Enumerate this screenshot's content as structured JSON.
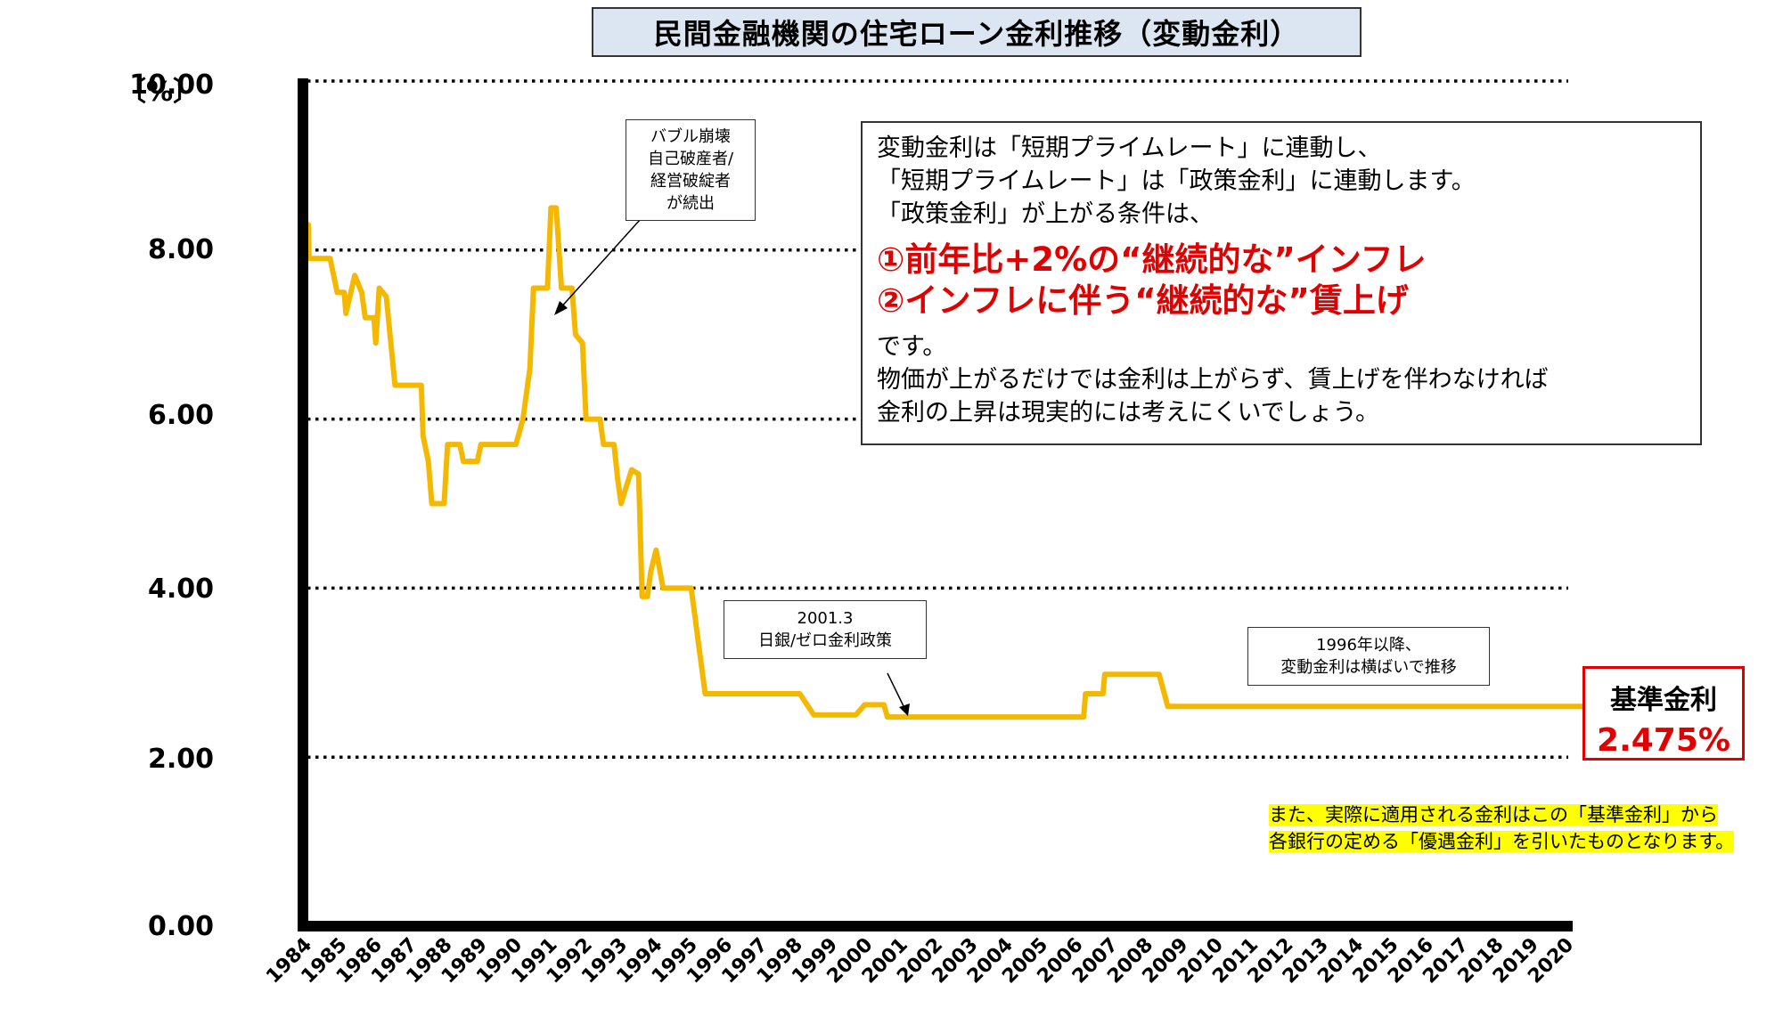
{
  "chart_data": {
    "type": "line",
    "title": "民間金融機関の住宅ローン金利推移（変動金利）",
    "ylabel_unit": "〔%〕",
    "ylim": [
      0,
      10
    ],
    "yticks": [
      "0.00",
      "2.00",
      "4.00",
      "6.00",
      "8.00",
      "10.00"
    ],
    "grid": "dotted horizontal at 2, 4, 6, 8, 10",
    "line_color": "#f5b800",
    "x_labels": [
      "1984",
      "1985",
      "1986",
      "1987",
      "1988",
      "1989",
      "1990",
      "1991",
      "1992",
      "1993",
      "1994",
      "1995",
      "1996",
      "1997",
      "1998",
      "1999",
      "2000",
      "2001",
      "2002",
      "2003",
      "2004",
      "2005",
      "2006",
      "2007",
      "2008",
      "2009",
      "2010",
      "2011",
      "2012",
      "2013",
      "2014",
      "2015",
      "2016",
      "2017",
      "2018",
      "2019",
      "2020"
    ],
    "series": [
      {
        "points": [
          [
            1984.0,
            8.1
          ],
          [
            1984.08,
            8.3
          ],
          [
            1984.1,
            7.9
          ],
          [
            1984.7,
            7.9
          ],
          [
            1984.9,
            7.5
          ],
          [
            1985.1,
            7.5
          ],
          [
            1985.15,
            7.25
          ],
          [
            1985.4,
            7.7
          ],
          [
            1985.6,
            7.5
          ],
          [
            1985.7,
            7.2
          ],
          [
            1985.95,
            7.2
          ],
          [
            1986.0,
            6.9
          ],
          [
            1986.1,
            7.55
          ],
          [
            1986.3,
            7.45
          ],
          [
            1986.55,
            6.4
          ],
          [
            1987.1,
            6.4
          ],
          [
            1987.3,
            6.4
          ],
          [
            1987.35,
            5.8
          ],
          [
            1987.5,
            5.5
          ],
          [
            1987.6,
            5.0
          ],
          [
            1987.95,
            5.0
          ],
          [
            1988.05,
            5.7
          ],
          [
            1988.4,
            5.7
          ],
          [
            1988.5,
            5.5
          ],
          [
            1988.9,
            5.5
          ],
          [
            1989.0,
            5.7
          ],
          [
            1989.5,
            5.7
          ],
          [
            1990.0,
            5.7
          ],
          [
            1990.2,
            6.0
          ],
          [
            1990.4,
            6.6
          ],
          [
            1990.5,
            7.55
          ],
          [
            1990.9,
            7.55
          ],
          [
            1991.0,
            8.5
          ],
          [
            1991.15,
            8.5
          ],
          [
            1991.3,
            7.55
          ],
          [
            1991.6,
            7.55
          ],
          [
            1991.7,
            7.0
          ],
          [
            1991.9,
            6.9
          ],
          [
            1992.0,
            6.0
          ],
          [
            1992.4,
            6.0
          ],
          [
            1992.5,
            5.7
          ],
          [
            1992.8,
            5.7
          ],
          [
            1992.9,
            5.3
          ],
          [
            1993.0,
            5.0
          ],
          [
            1993.3,
            5.4
          ],
          [
            1993.5,
            5.35
          ],
          [
            1993.6,
            3.9
          ],
          [
            1993.75,
            3.9
          ],
          [
            1993.85,
            4.2
          ],
          [
            1994.0,
            4.45
          ],
          [
            1994.2,
            4.0
          ],
          [
            1994.5,
            4.0
          ],
          [
            1995.0,
            4.0
          ],
          [
            1995.4,
            2.75
          ],
          [
            1998.1,
            2.75
          ],
          [
            1998.5,
            2.5
          ],
          [
            1999.7,
            2.5
          ],
          [
            1999.95,
            2.62
          ],
          [
            2000.5,
            2.62
          ],
          [
            2000.6,
            2.475
          ],
          [
            2006.2,
            2.475
          ],
          [
            2006.25,
            2.75
          ],
          [
            2006.75,
            2.75
          ],
          [
            2006.8,
            2.98
          ],
          [
            2008.35,
            2.98
          ],
          [
            2008.6,
            2.6
          ],
          [
            2020.8,
            2.6
          ]
        ]
      }
    ],
    "annotations": [
      {
        "text": [
          "バブル崩壊",
          "自己破産者/",
          "経営破綻者",
          "が続出"
        ]
      },
      {
        "text": [
          "2001.3",
          "日銀/ゼロ金利政策"
        ]
      },
      {
        "text": [
          "1996年以降、",
          "変動金利は横ばいで推移"
        ]
      }
    ]
  },
  "info": {
    "line1": "変動金利は「短期プライムレート」に連動し、",
    "line2": "「短期プライムレート」は「政策金利」に連動します。",
    "line3": "「政策金利」が上がる条件は、",
    "red1": "①前年比+2%の“継続的な”インフレ",
    "red2": "②インフレに伴う“継続的な”賃上げ",
    "line4": "です。",
    "line5": "物価が上がるだけでは金利は上がらず、賃上げを伴わなければ",
    "line6": "金利の上昇は現実的には考えにくいでしょう。"
  },
  "kijun": {
    "label": "基準金利",
    "value": "2.475%"
  },
  "note": {
    "line1": "また、実際に適用される金利はこの「基準金利」から",
    "line2": "各銀行の定める「優遇金利」を引いたものとなります。"
  }
}
